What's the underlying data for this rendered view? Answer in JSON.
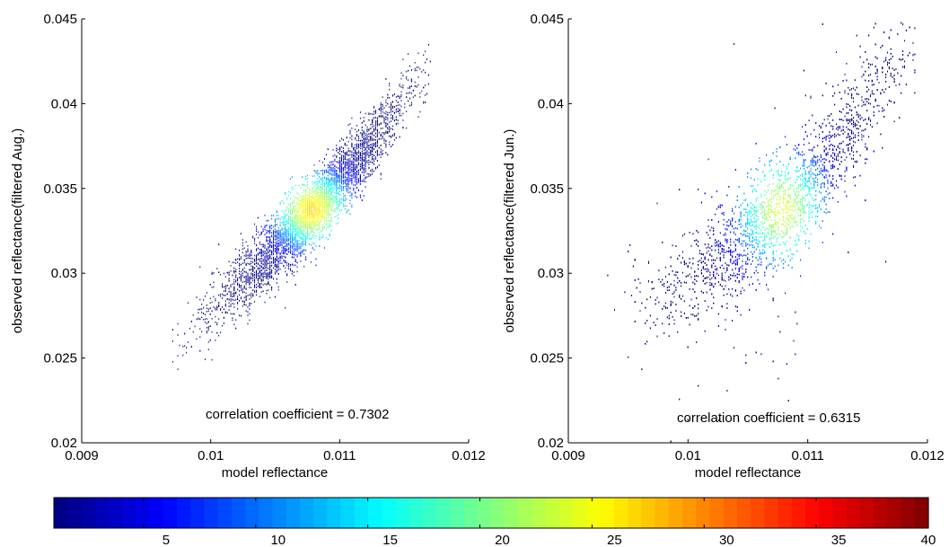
{
  "chart_data": [
    {
      "type": "scatter",
      "subtype": "density-colored scatter",
      "xlabel": "model reflectance",
      "ylabel": "observed reflectance(filtered Aug.)",
      "xlim": [
        0.009,
        0.012
      ],
      "ylim": [
        0.02,
        0.045
      ],
      "xticks": [
        "0.009",
        "0.01",
        "0.011",
        "0.012"
      ],
      "yticks": [
        "0.02",
        "0.025",
        "0.03",
        "0.035",
        "0.04",
        "0.045"
      ],
      "annotation": "correlation coefficient = 0.7302",
      "correlation": 0.7302,
      "density_peak": {
        "x": 0.01078,
        "y": 0.0338,
        "value": 27
      },
      "distribution": {
        "band_half_width_y": 0.0018,
        "x_range": [
          0.0097,
          0.0117
        ]
      },
      "centerline": [
        {
          "x": 0.0097,
          "y": 0.0258
        },
        {
          "x": 0.01,
          "y": 0.0278
        },
        {
          "x": 0.0103,
          "y": 0.03
        },
        {
          "x": 0.0106,
          "y": 0.0322
        },
        {
          "x": 0.0108,
          "y": 0.0338
        },
        {
          "x": 0.011,
          "y": 0.0355
        },
        {
          "x": 0.0112,
          "y": 0.0372
        },
        {
          "x": 0.0114,
          "y": 0.0392
        },
        {
          "x": 0.0116,
          "y": 0.0418
        }
      ],
      "grid": false
    },
    {
      "type": "scatter",
      "subtype": "density-colored scatter",
      "xlabel": "model reflectance",
      "ylabel": "observed reflectance(filtered Jun.)",
      "xlim": [
        0.009,
        0.012
      ],
      "ylim": [
        0.02,
        0.045
      ],
      "xticks": [
        "0.009",
        "0.01",
        "0.011",
        "0.012"
      ],
      "yticks": [
        "0.02",
        "0.025",
        "0.03",
        "0.035",
        "0.04",
        "0.045"
      ],
      "annotation": "correlation coefficient = 0.6315",
      "correlation": 0.6315,
      "density_peak": {
        "x": 0.01078,
        "y": 0.0338,
        "value": 24
      },
      "distribution": {
        "band_half_width_y": 0.0028,
        "x_range": [
          0.0093,
          0.0119
        ]
      },
      "centerline": [
        {
          "x": 0.0093,
          "y": 0.0285
        },
        {
          "x": 0.0097,
          "y": 0.0285
        },
        {
          "x": 0.01,
          "y": 0.0298
        },
        {
          "x": 0.0103,
          "y": 0.0312
        },
        {
          "x": 0.0106,
          "y": 0.0328
        },
        {
          "x": 0.0108,
          "y": 0.0338
        },
        {
          "x": 0.011,
          "y": 0.0352
        },
        {
          "x": 0.0112,
          "y": 0.0368
        },
        {
          "x": 0.0114,
          "y": 0.0388
        },
        {
          "x": 0.0116,
          "y": 0.0415
        },
        {
          "x": 0.0119,
          "y": 0.0432
        }
      ],
      "grid": false
    }
  ],
  "colorbar": {
    "range": [
      1,
      40
    ],
    "ticks": [
      "5",
      "10",
      "15",
      "20",
      "25",
      "30",
      "35",
      "40"
    ],
    "colormap": "jet",
    "orientation": "horizontal"
  }
}
